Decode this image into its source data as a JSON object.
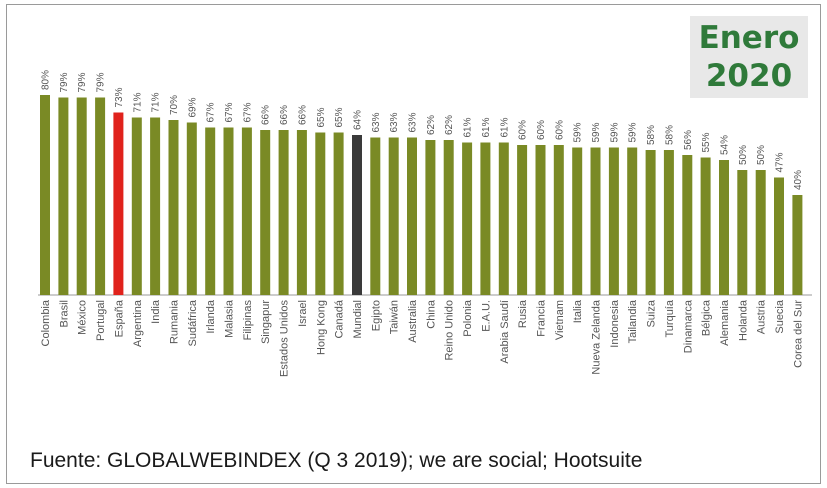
{
  "badge": {
    "line1": "Enero",
    "line2": "2020"
  },
  "source": "Fuente: GLOBALWEBINDEX (Q 3 2019); we are social; Hootsuite",
  "colors": {
    "bar": "#7a8a25",
    "highlight_spain": "#e0221c",
    "highlight_world": "#3a3a3a",
    "text": "#555555"
  },
  "chart_data": {
    "type": "bar",
    "title": "",
    "xlabel": "",
    "ylabel": "",
    "ylim": [
      0,
      80
    ],
    "grid": false,
    "categories": [
      "Colombia",
      "Brasil",
      "México",
      "Portugal",
      "España",
      "Argentina",
      "India",
      "Rumania",
      "Sudáfrica",
      "Irlanda",
      "Malasia",
      "Filipinas",
      "Singapur",
      "Estados Unidos",
      "Israel",
      "Hong Kong",
      "Canadá",
      "Mundial",
      "Egipto",
      "Taiwán",
      "Australia",
      "China",
      "Reino Unido",
      "Polonia",
      "E.A.U.",
      "Arabia Saudí",
      "Rusia",
      "Francia",
      "Vietnam",
      "Italia",
      "Nueva Zelanda",
      "Indonesia",
      "Tailandia",
      "Suiza",
      "Turquía",
      "Dinamarca",
      "Bélgica",
      "Alemania",
      "Holanda",
      "Austria",
      "Suecia",
      "Corea del Sur"
    ],
    "values": [
      80,
      79,
      79,
      79,
      73,
      71,
      71,
      70,
      69,
      67,
      67,
      67,
      66,
      66,
      66,
      65,
      65,
      64,
      63,
      63,
      63,
      62,
      62,
      61,
      61,
      61,
      60,
      60,
      60,
      59,
      59,
      59,
      59,
      58,
      58,
      56,
      55,
      54,
      50,
      50,
      47,
      40
    ],
    "labels": [
      "80%",
      "79%",
      "79%",
      "79%",
      "73%",
      "71%",
      "71%",
      "70%",
      "69%",
      "67%",
      "67%",
      "67%",
      "66%",
      "66%",
      "66%",
      "65%",
      "65%",
      "64%",
      "63%",
      "63%",
      "63%",
      "62%",
      "62%",
      "61%",
      "61%",
      "61%",
      "60%",
      "60%",
      "60%",
      "59%",
      "59%",
      "59%",
      "59%",
      "58%",
      "58%",
      "56%",
      "55%",
      "54%",
      "50%",
      "50%",
      "47%",
      "40%"
    ],
    "highlight": {
      "España": "#e0221c",
      "Mundial": "#3a3a3a"
    }
  }
}
